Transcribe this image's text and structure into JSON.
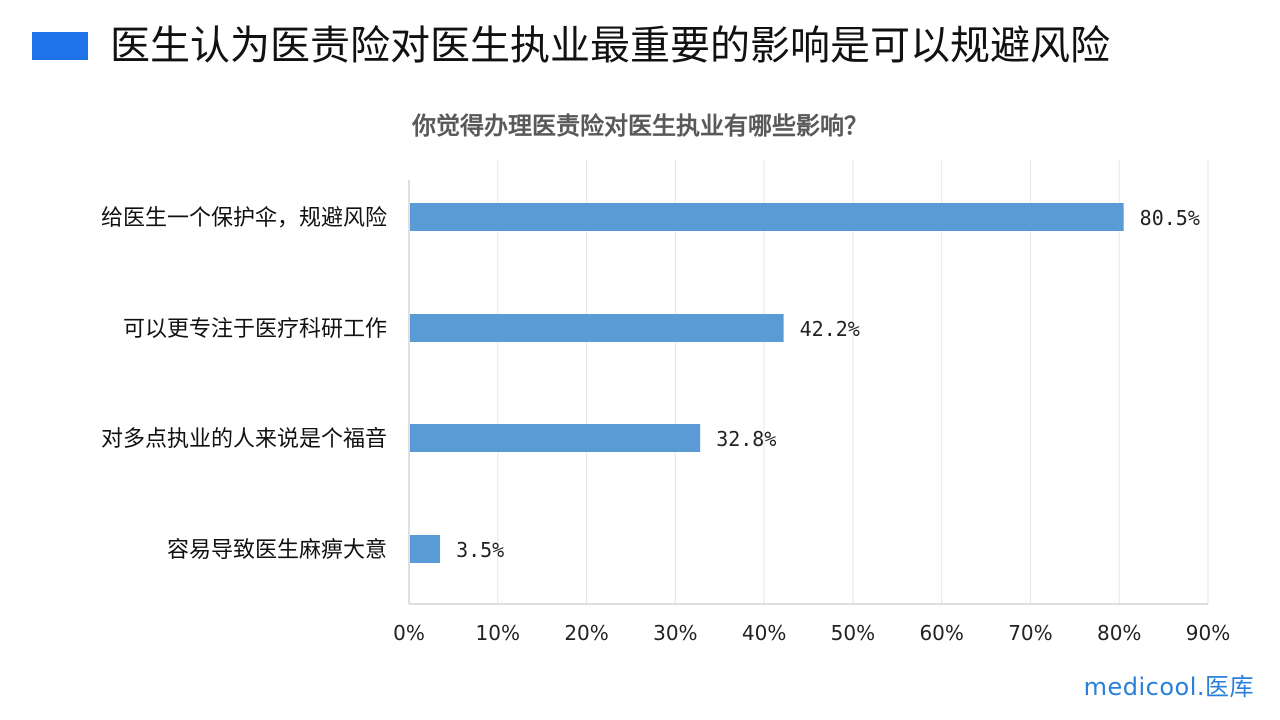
{
  "header": {
    "title": "医生认为医责险对医生执业最重要的影响是可以规避风险",
    "marker_color": "#1e73e8"
  },
  "chart_data": {
    "type": "bar",
    "orientation": "horizontal",
    "title": "你觉得办理医责险对医生执业有哪些影响？",
    "categories": [
      "给医生一个保护伞，规避风险",
      "可以更专注于医疗科研工作",
      "对多点执业的人来说是个福音",
      "容易导致医生麻痹大意"
    ],
    "values": [
      80.5,
      42.2,
      32.8,
      3.5
    ],
    "data_labels": [
      "80.5%",
      "42.2%",
      "32.8%",
      "3.5%"
    ],
    "xlim": [
      0,
      90
    ],
    "xticks": [
      "0%",
      "10%",
      "20%",
      "30%",
      "40%",
      "50%",
      "60%",
      "70%",
      "80%",
      "90%"
    ],
    "grid": true,
    "bar_color": "#5b9bd5"
  },
  "brand": {
    "logo_text": "medicool.医库",
    "color": "#2a7fd9"
  }
}
